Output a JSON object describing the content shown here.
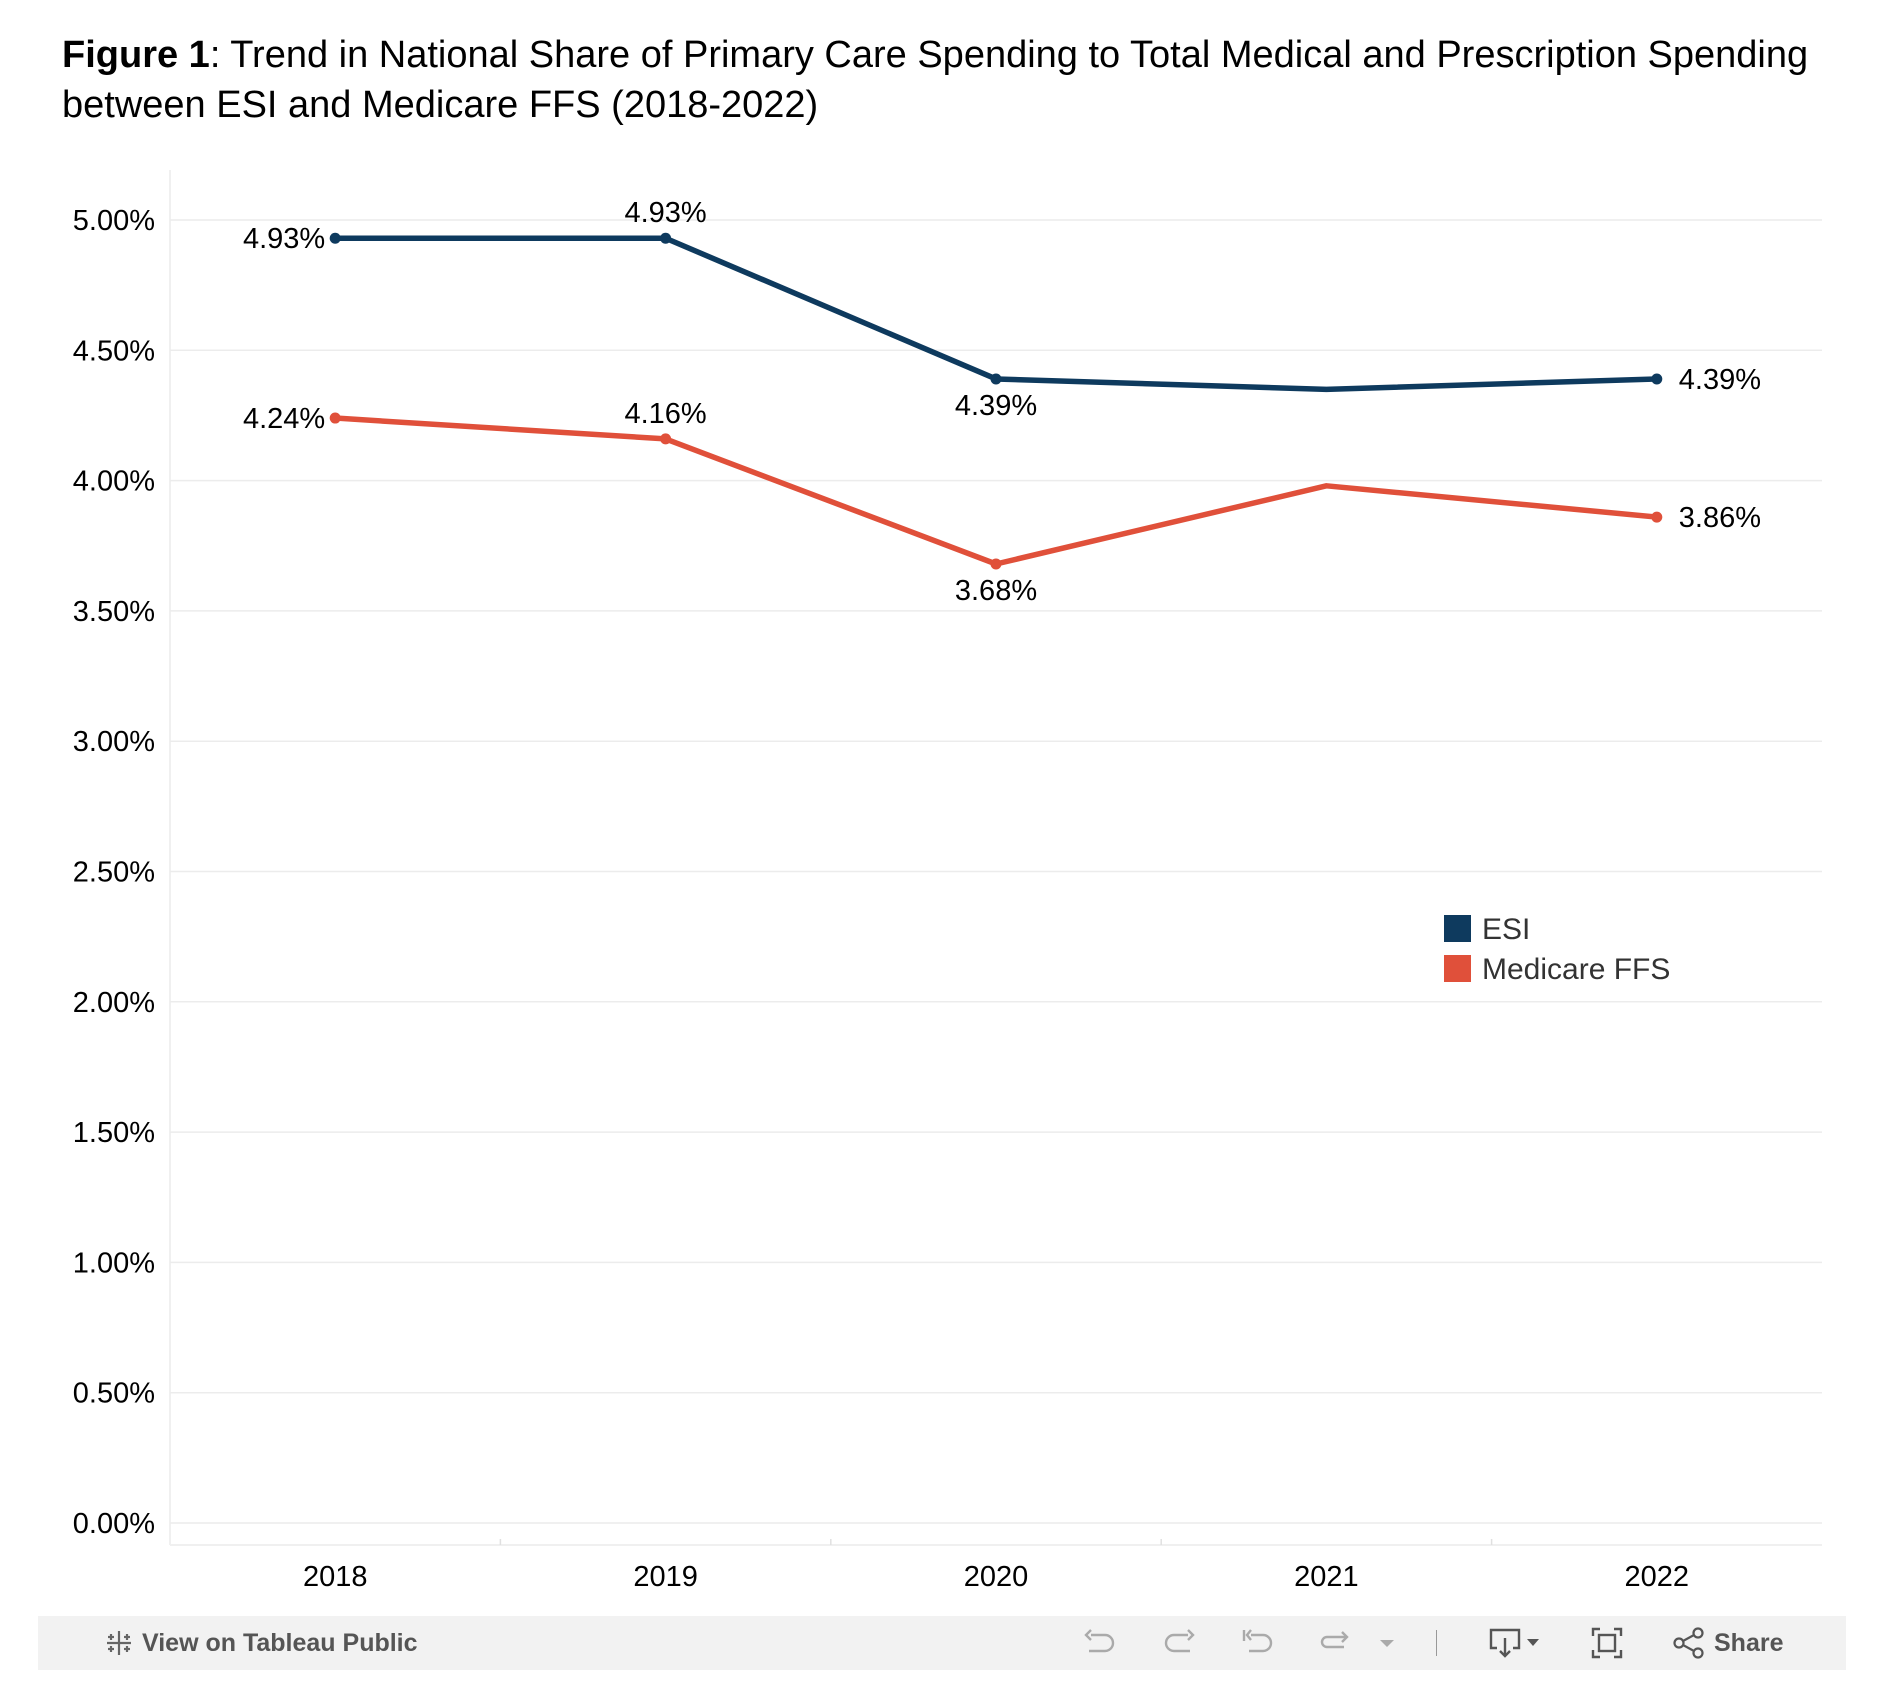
{
  "title": {
    "bold": "Figure 1",
    "rest": ": Trend in National Share of Primary Care Spending to Total Medical and Prescription Spending between ESI and Medicare FFS (2018-2022)"
  },
  "chart_data": {
    "type": "line",
    "title": "Figure 1: Trend in National Share of Primary Care Spending to Total Medical and Prescription Spending between ESI and Medicare FFS (2018-2022)",
    "xlabel": "",
    "ylabel": "",
    "categories": [
      "2018",
      "2019",
      "2020",
      "2021",
      "2022"
    ],
    "ylim": [
      0,
      5.2
    ],
    "yticks": [
      0,
      0.5,
      1,
      1.5,
      2,
      2.5,
      3,
      3.5,
      4,
      4.5,
      5
    ],
    "ytick_labels": [
      "0.00%",
      "0.50%",
      "1.00%",
      "1.50%",
      "2.00%",
      "2.50%",
      "3.00%",
      "3.50%",
      "4.00%",
      "4.50%",
      "5.00%"
    ],
    "grid": true,
    "legend_position": "right",
    "series": [
      {
        "name": "ESI",
        "color": "#0e3a5e",
        "values": [
          4.93,
          4.93,
          4.39,
          4.35,
          4.39
        ],
        "labels": [
          "4.93%",
          "4.93%",
          "4.39%",
          "",
          "4.39%"
        ],
        "label_positions": [
          "left",
          "above",
          "below",
          "none",
          "right"
        ]
      },
      {
        "name": "Medicare FFS",
        "color": "#e0503a",
        "values": [
          4.24,
          4.16,
          3.68,
          3.98,
          3.86
        ],
        "labels": [
          "4.24%",
          "4.16%",
          "3.68%",
          "",
          "3.86%"
        ],
        "label_positions": [
          "left",
          "above",
          "below",
          "none",
          "right"
        ]
      }
    ]
  },
  "toolbar": {
    "view_label": "View on Tableau Public",
    "share_label": "Share",
    "icons": [
      "tableau-logo-icon",
      "undo-icon",
      "redo-icon",
      "revert-icon",
      "refresh-icon",
      "dropdown-arrow-icon",
      "download-icon",
      "fullscreen-icon",
      "share-icon"
    ]
  }
}
